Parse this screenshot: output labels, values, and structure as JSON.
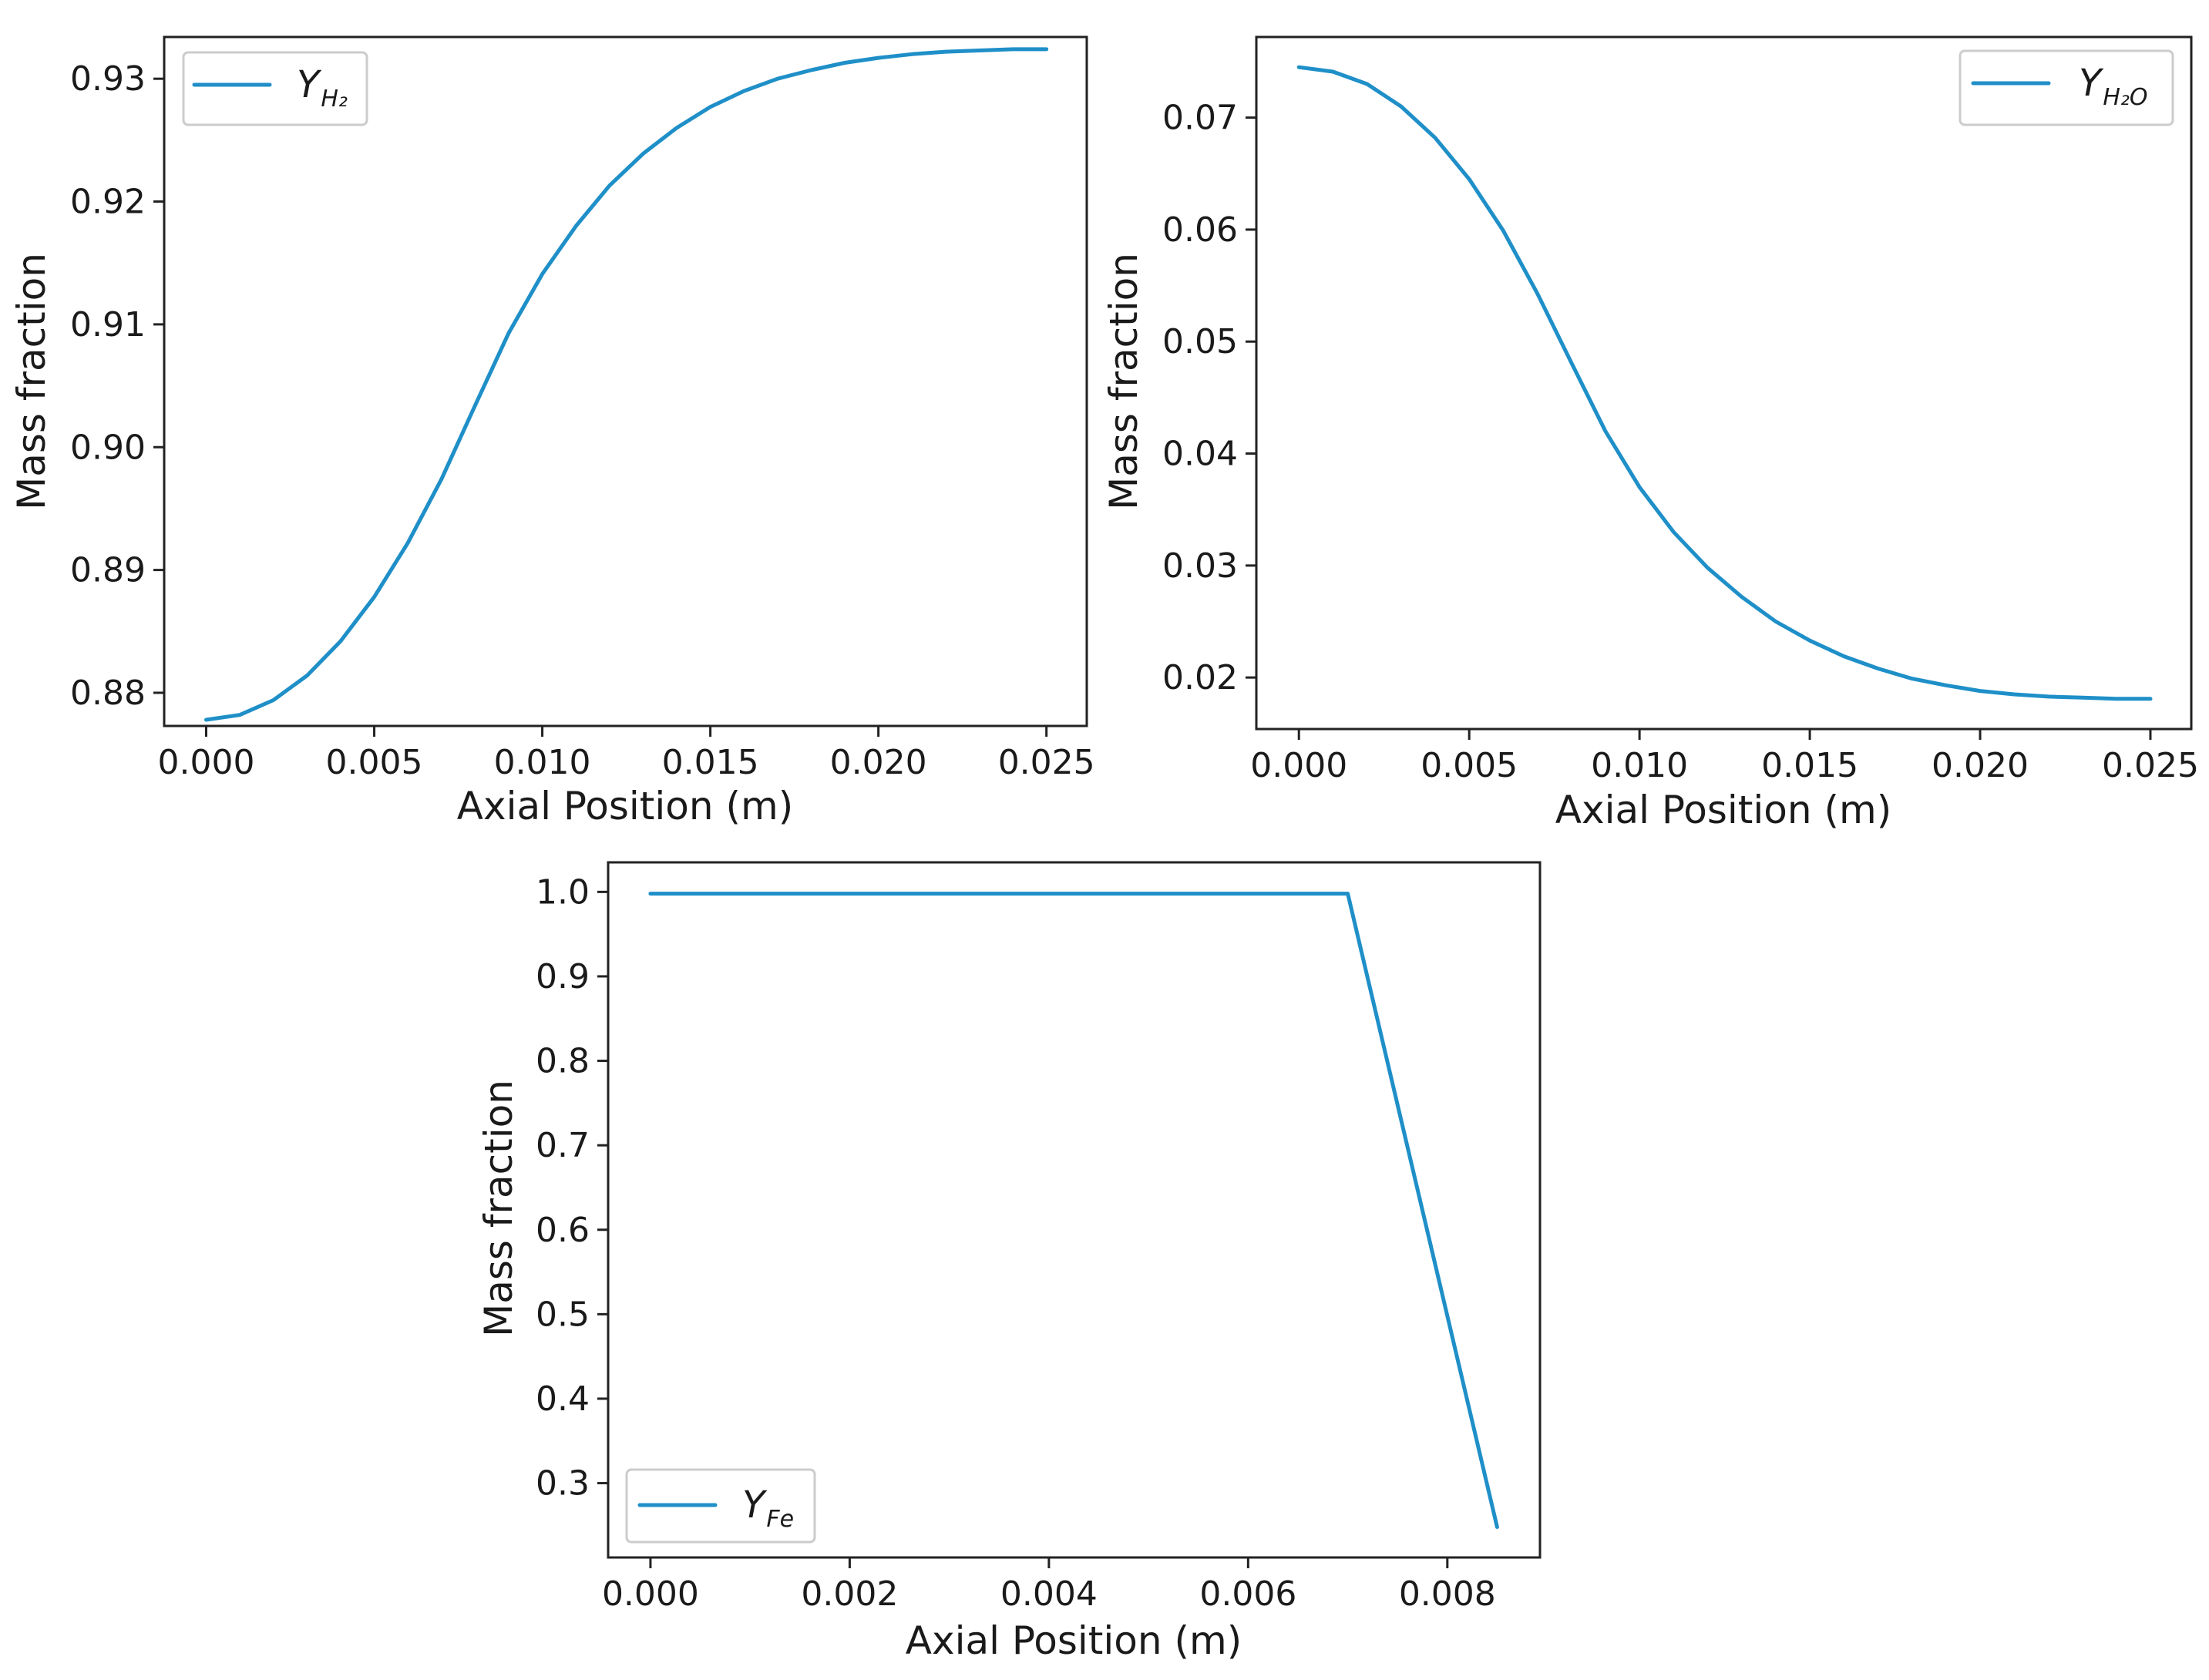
{
  "chart_data": [
    {
      "type": "line",
      "xlabel": "Axial Position (m)",
      "ylabel": "Mass fraction",
      "xlim": [
        -0.00125,
        0.0262
      ],
      "ylim": [
        0.8773,
        0.9334
      ],
      "xticks": [
        0.0,
        0.005,
        0.01,
        0.015,
        0.02,
        0.025
      ],
      "xtick_labels": [
        "0.000",
        "0.005",
        "0.010",
        "0.015",
        "0.020",
        "0.025"
      ],
      "yticks": [
        0.88,
        0.89,
        0.9,
        0.91,
        0.92,
        0.93
      ],
      "ytick_labels": [
        "0.88",
        "0.89",
        "0.90",
        "0.91",
        "0.92",
        "0.93"
      ],
      "legend_position": "upper left",
      "color": "#1f8fc8",
      "series": [
        {
          "name": "Y_H2",
          "legend_main": "Y",
          "legend_sub": "H₂",
          "x": [
            0.0,
            0.001,
            0.002,
            0.003,
            0.004,
            0.005,
            0.006,
            0.007,
            0.008,
            0.009,
            0.01,
            0.011,
            0.012,
            0.013,
            0.014,
            0.015,
            0.016,
            0.017,
            0.018,
            0.019,
            0.02,
            0.021,
            0.022,
            0.023,
            0.024,
            0.025
          ],
          "y": [
            0.8778,
            0.8782,
            0.8794,
            0.8814,
            0.8842,
            0.8878,
            0.8922,
            0.8974,
            0.9034,
            0.9093,
            0.9141,
            0.918,
            0.9213,
            0.9239,
            0.926,
            0.9277,
            0.929,
            0.93,
            0.9307,
            0.9313,
            0.9317,
            0.932,
            0.9322,
            0.9323,
            0.9324,
            0.9324
          ]
        }
      ]
    },
    {
      "type": "line",
      "xlabel": "Axial Position (m)",
      "ylabel": "Mass fraction",
      "xlim": [
        -0.00125,
        0.0262
      ],
      "ylim": [
        0.0154,
        0.0772
      ],
      "xticks": [
        0.0,
        0.005,
        0.01,
        0.015,
        0.02,
        0.025
      ],
      "xtick_labels": [
        "0.000",
        "0.005",
        "0.010",
        "0.015",
        "0.020",
        "0.025"
      ],
      "yticks": [
        0.02,
        0.03,
        0.04,
        0.05,
        0.06,
        0.07
      ],
      "ytick_labels": [
        "0.02",
        "0.03",
        "0.04",
        "0.05",
        "0.06",
        "0.07"
      ],
      "legend_position": "upper right",
      "color": "#1f8fc8",
      "series": [
        {
          "name": "Y_H2O",
          "legend_main": "Y",
          "legend_sub": "H₂O",
          "x": [
            0.0,
            0.001,
            0.002,
            0.003,
            0.004,
            0.005,
            0.006,
            0.007,
            0.008,
            0.009,
            0.01,
            0.011,
            0.012,
            0.013,
            0.014,
            0.015,
            0.016,
            0.017,
            0.018,
            0.019,
            0.02,
            0.021,
            0.022,
            0.023,
            0.024,
            0.025
          ],
          "y": [
            0.0745,
            0.0741,
            0.073,
            0.071,
            0.0682,
            0.0645,
            0.0599,
            0.0543,
            0.0481,
            0.042,
            0.037,
            0.033,
            0.0298,
            0.0272,
            0.025,
            0.0233,
            0.0219,
            0.0208,
            0.0199,
            0.0193,
            0.0188,
            0.0185,
            0.0183,
            0.0182,
            0.0181,
            0.0181
          ]
        }
      ]
    },
    {
      "type": "line",
      "xlabel": "Axial Position (m)",
      "ylabel": "Mass fraction",
      "xlim": [
        -0.000425,
        0.00893
      ],
      "ylim": [
        0.212,
        1.035
      ],
      "xticks": [
        0.0,
        0.002,
        0.004,
        0.006,
        0.008
      ],
      "xtick_labels": [
        "0.000",
        "0.002",
        "0.004",
        "0.006",
        "0.008"
      ],
      "yticks": [
        0.3,
        0.4,
        0.5,
        0.6,
        0.7,
        0.8,
        0.9,
        1.0
      ],
      "ytick_labels": [
        "0.3",
        "0.4",
        "0.5",
        "0.6",
        "0.7",
        "0.8",
        "0.9",
        "1.0"
      ],
      "legend_position": "lower left",
      "color": "#1f8fc8",
      "series": [
        {
          "name": "Y_Fe",
          "legend_main": "Y",
          "legend_sub": "Fe",
          "x": [
            0.0,
            0.007,
            0.0085
          ],
          "y": [
            0.998,
            0.998,
            0.248
          ]
        }
      ]
    }
  ]
}
